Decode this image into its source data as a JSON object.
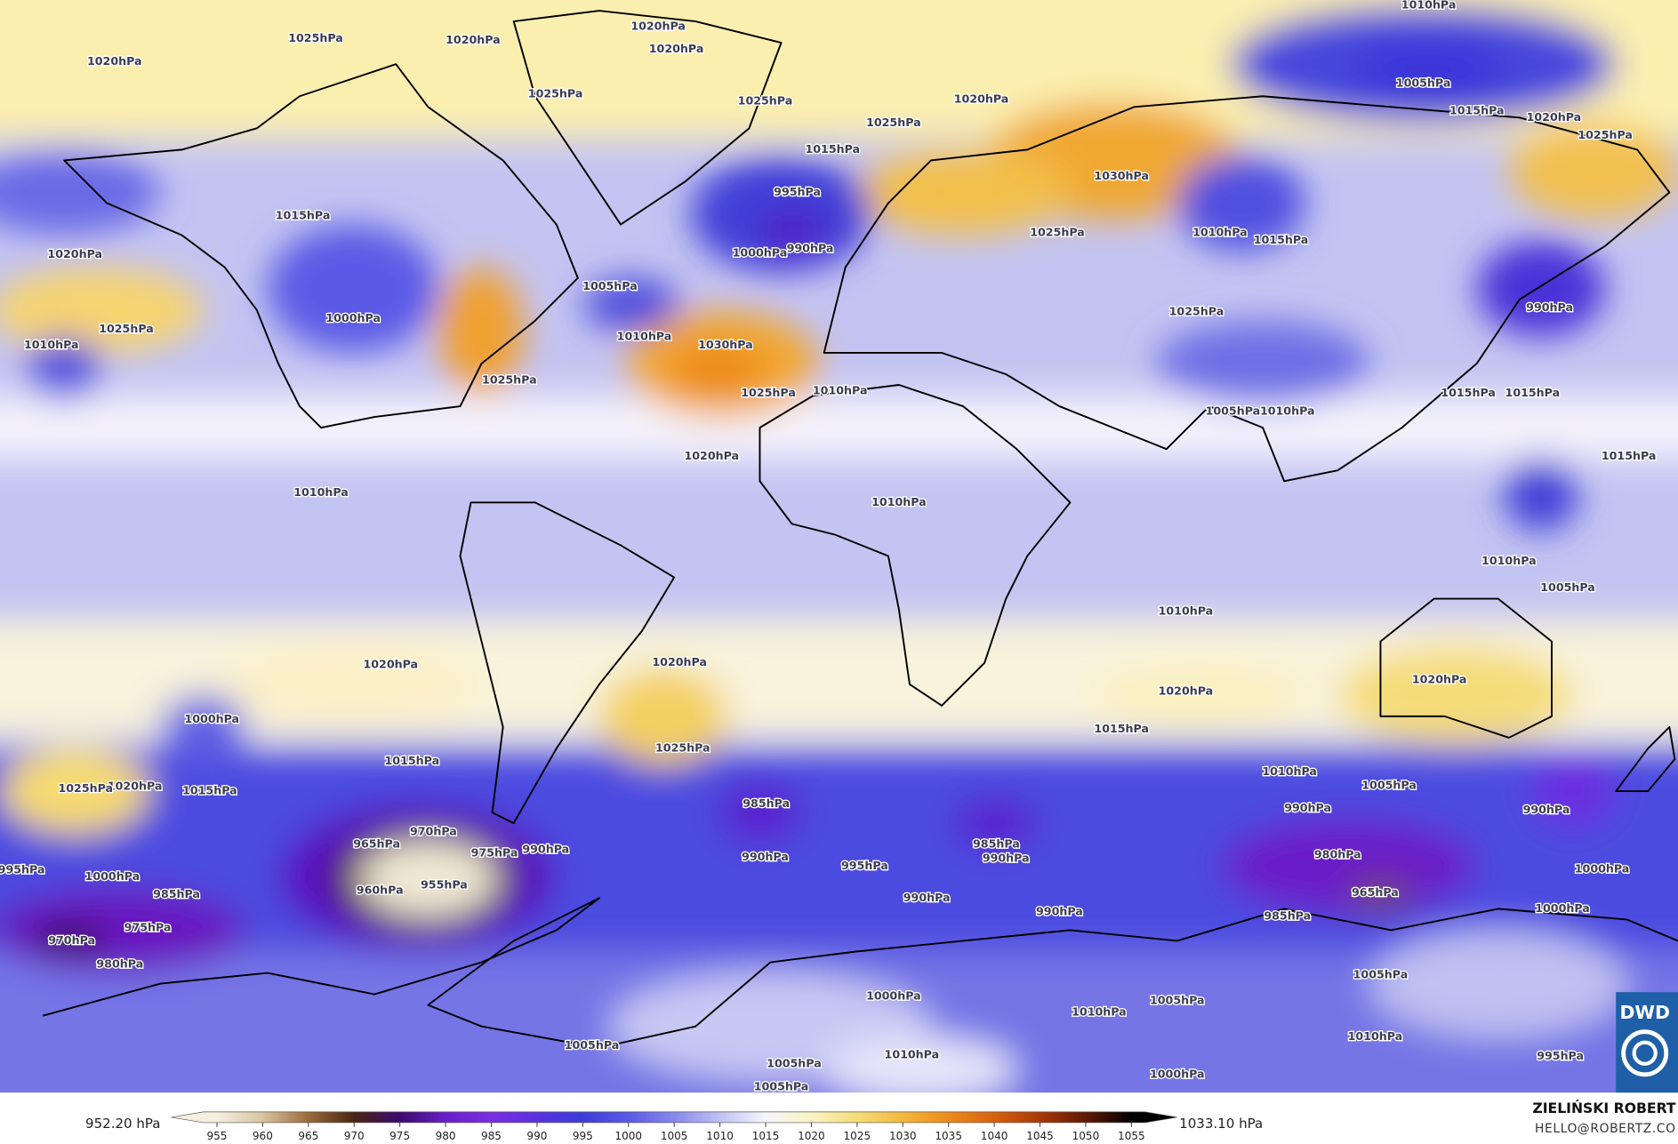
{
  "pressure_labels": [
    "1020hPa",
    "1025hPa",
    "1020hPa",
    "1020hPa",
    "1010hPa",
    "1020hPa",
    "1025hPa",
    "1025hPa",
    "1020hPa",
    "1005hPa",
    "1015hPa",
    "1020hPa",
    "1025hPa",
    "1015hPa",
    "1025hPa",
    "1030hPa",
    "995hPa",
    "1015hPa",
    "1010hPa",
    "1015hPa",
    "1020hPa",
    "1000hPa",
    "990hPa",
    "1025hPa",
    "1005hPa",
    "1000hPa",
    "1025hPa",
    "1025hPa",
    "1010hPa",
    "990hPa",
    "1030hPa",
    "1010hPa",
    "1025hPa",
    "1025hPa",
    "1010hPa",
    "1015hPa",
    "1015hPa",
    "1005hPa",
    "1010hPa",
    "1020hPa",
    "1015hPa",
    "1010hPa",
    "1010hPa",
    "1010hPa",
    "1005hPa",
    "1010hPa",
    "1020hPa",
    "1020hPa",
    "1020hPa",
    "1020hPa",
    "1000hPa",
    "1015hPa",
    "1025hPa",
    "1015hPa",
    "1010hPa",
    "1005hPa",
    "1020hPa",
    "1015hPa",
    "1025hPa",
    "985hPa",
    "990hPa",
    "990hPa",
    "970hPa",
    "965hPa",
    "975hPa",
    "990hPa",
    "985hPa",
    "990hPa",
    "990hPa",
    "995hPa",
    "980hPa",
    "995hPa",
    "1000hPa",
    "960hPa",
    "955hPa",
    "985hPa",
    "990hPa",
    "965hPa",
    "1000hPa",
    "975hPa",
    "990hPa",
    "985hPa",
    "1000hPa",
    "970hPa",
    "980hPa",
    "1005hPa",
    "1000hPa",
    "1005hPa",
    "1010hPa",
    "1010hPa",
    "1005hPa",
    "1005hPa",
    "1010hPa",
    "1000hPa",
    "995hPa",
    "1005hPa"
  ],
  "colorbar": {
    "min_label": "952.20 hPa",
    "max_label": "1033.10 hPa",
    "lim": [
      950,
      1060
    ],
    "ticks": [
      955,
      960,
      965,
      970,
      975,
      980,
      985,
      990,
      995,
      1000,
      1005,
      1010,
      1015,
      1020,
      1025,
      1030,
      1035,
      1040,
      1045,
      1050,
      1055
    ],
    "colors": [
      "#f5efe0",
      "#d9c4a0",
      "#9b6a3c",
      "#4a2412",
      "#3b0a6e",
      "#6a1fc8",
      "#7a2ee0",
      "#5a30e0",
      "#3c3cd8",
      "#5a5ae6",
      "#8888ec",
      "#c0c0f4",
      "#f6f6fc",
      "#fbf3c4",
      "#f6dc78",
      "#f2b83c",
      "#ee8a1c",
      "#d8600c",
      "#a83808",
      "#601a04",
      "#000000"
    ]
  },
  "logo": "DWD",
  "credits": {
    "name": "ZIELIŃSKI ROBERT",
    "email": "HELLO@ROBERTZ.CO"
  }
}
